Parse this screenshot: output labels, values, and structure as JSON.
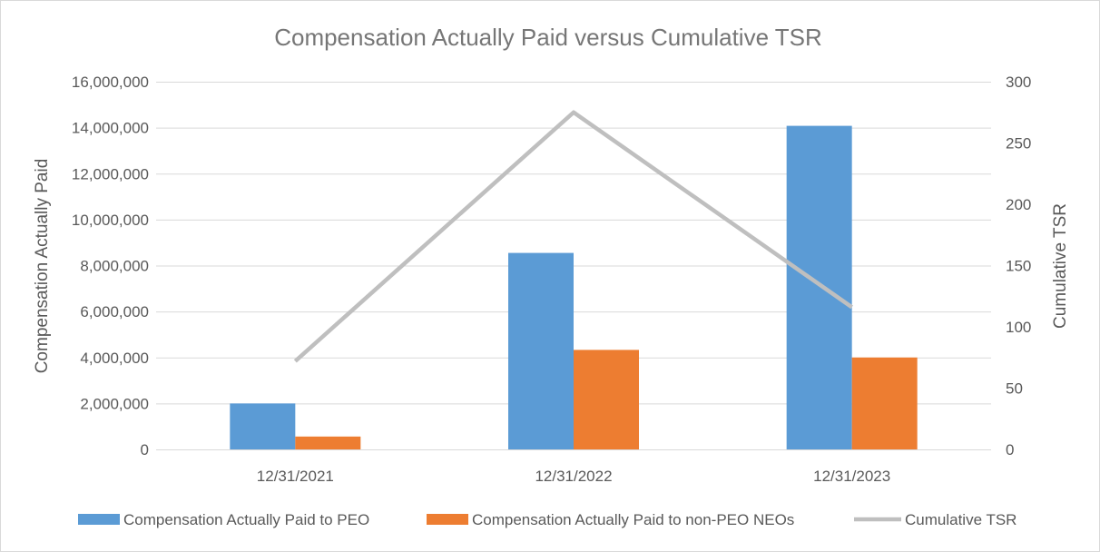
{
  "chart_data": {
    "type": "bar",
    "title": "Compensation Actually Paid versus Cumulative TSR",
    "categories": [
      "12/31/2021",
      "12/31/2022",
      "12/31/2023"
    ],
    "series": [
      {
        "name": "Compensation Actually Paid to PEO",
        "kind": "bar",
        "axis": "left",
        "color": "#5B9BD5",
        "values": [
          2000000,
          8550000,
          14080000
        ]
      },
      {
        "name": "Compensation Actually Paid to non-PEO NEOs",
        "kind": "bar",
        "axis": "left",
        "color": "#ED7D31",
        "values": [
          560000,
          4330000,
          4000000
        ]
      },
      {
        "name": "Cumulative TSR",
        "kind": "line",
        "axis": "right",
        "color": "#BFBFBF",
        "values": [
          72,
          275,
          116
        ]
      }
    ],
    "ylabel": "Compensation Actually Paid",
    "y2label": "Cumulative TSR",
    "ylim": [
      0,
      16000000
    ],
    "y2lim": [
      0,
      300
    ],
    "yticks": [
      "0",
      "2,000,000",
      "4,000,000",
      "6,000,000",
      "8,000,000",
      "10,000,000",
      "12,000,000",
      "14,000,000",
      "16,000,000"
    ],
    "y2ticks": [
      "0",
      "50",
      "100",
      "150",
      "200",
      "250",
      "300"
    ],
    "grid": true,
    "legend_position": "bottom"
  }
}
